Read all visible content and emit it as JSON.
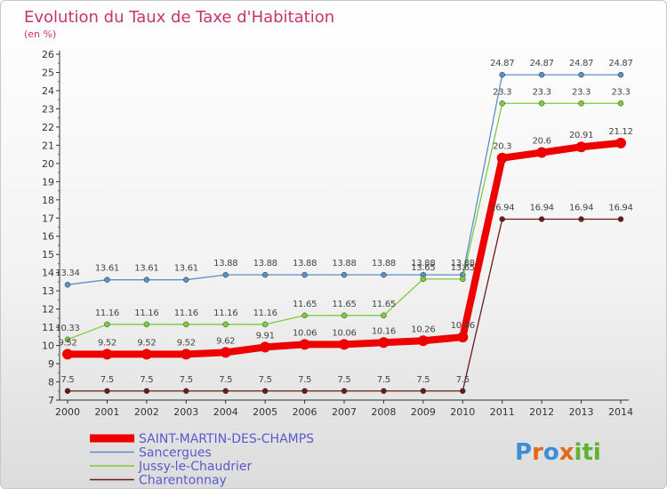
{
  "title": "Evolution du Taux de Taxe d'Habitation",
  "subtitle": "(en %)",
  "logo": {
    "text": "Proxiti",
    "letter_colors": [
      "#3c8fd6",
      "#e06a1a",
      "#3c8fd6",
      "#e06a1a",
      "#5bb330",
      "#5bb330",
      "#5bb330"
    ]
  },
  "chart_data": {
    "type": "line",
    "x": [
      2000,
      2001,
      2002,
      2003,
      2004,
      2005,
      2006,
      2007,
      2008,
      2009,
      2010,
      2011,
      2012,
      2013,
      2014
    ],
    "ylim": [
      7,
      26
    ],
    "yticks": [
      7,
      8,
      9,
      10,
      11,
      12,
      13,
      14,
      15,
      16,
      17,
      18,
      19,
      20,
      21,
      22,
      23,
      24,
      25,
      26
    ],
    "grid": false,
    "legend_position": "bottom-left",
    "series": [
      {
        "name": "SAINT-MARTIN-DES-CHAMPS",
        "color": "#ee0000",
        "highlight": true,
        "values": [
          9.52,
          9.52,
          9.52,
          9.52,
          9.62,
          9.91,
          10.06,
          10.06,
          10.16,
          10.26,
          10.46,
          20.3,
          20.6,
          20.91,
          21.12
        ],
        "labels": [
          "9.52",
          "9.52",
          "9.52",
          "9.52",
          "9.62",
          "9.91",
          "10.06",
          "10.06",
          "10.16",
          "10.26",
          "10.46",
          "20.3",
          "20.6",
          "20.91",
          "21.12"
        ]
      },
      {
        "name": "Sancergues",
        "color": "#5b8fc8",
        "highlight": false,
        "values": [
          13.34,
          13.61,
          13.61,
          13.61,
          13.88,
          13.88,
          13.88,
          13.88,
          13.88,
          13.88,
          13.88,
          24.87,
          24.87,
          24.87,
          24.87
        ],
        "labels": [
          "13.34",
          "13.61",
          "13.61",
          "13.61",
          "13.88",
          "13.88",
          "13.88",
          "13.88",
          "13.88",
          "13.88",
          "13.88",
          "24.87",
          "24.87",
          "24.87",
          "24.87"
        ]
      },
      {
        "name": "Jussy-le-Chaudrier",
        "color": "#7ccc3c",
        "highlight": false,
        "values": [
          10.33,
          11.16,
          11.16,
          11.16,
          11.16,
          11.16,
          11.65,
          11.65,
          11.65,
          13.65,
          13.65,
          23.3,
          23.3,
          23.3,
          23.3
        ],
        "labels": [
          "10.33",
          "11.16",
          "11.16",
          "11.16",
          "11.16",
          "11.16",
          "11.65",
          "11.65",
          "11.65",
          "13.65",
          "13.65",
          "23.3",
          "23.3",
          "23.3",
          "23.3"
        ]
      },
      {
        "name": "Charentonnay",
        "color": "#6a1a1a",
        "highlight": false,
        "values": [
          7.5,
          7.5,
          7.5,
          7.5,
          7.5,
          7.5,
          7.5,
          7.5,
          7.5,
          7.5,
          7.5,
          16.94,
          16.94,
          16.94,
          16.94
        ],
        "labels": [
          "7.5",
          "7.5",
          "7.5",
          "7.5",
          "7.5",
          "7.5",
          "7.5",
          "7.5",
          "7.5",
          "7.5",
          "7.5",
          "16.94",
          "16.94",
          "16.94",
          "16.94"
        ]
      }
    ]
  }
}
